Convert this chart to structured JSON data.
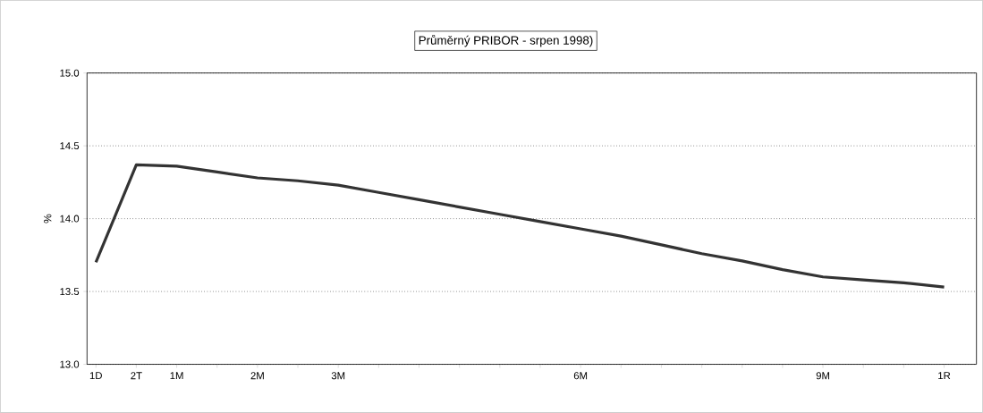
{
  "chart_data": {
    "type": "line",
    "title": "Průměrný PRIBOR - srpen 1998)",
    "ylabel": "%",
    "categories": [
      "1D",
      "2T",
      "1M",
      null,
      "2M",
      null,
      "3M",
      null,
      null,
      null,
      null,
      null,
      "6M",
      null,
      null,
      null,
      null,
      null,
      "9M",
      null,
      null,
      "1R"
    ],
    "series": [
      {
        "color": "#333333",
        "values": [
          13.7,
          14.37,
          14.36,
          14.32,
          14.28,
          14.26,
          14.23,
          14.18,
          14.13,
          14.08,
          14.03,
          13.98,
          13.93,
          13.88,
          13.82,
          13.76,
          13.71,
          13.65,
          13.6,
          13.58,
          13.56,
          13.53
        ]
      }
    ],
    "ylim": [
      13.0,
      15.0
    ],
    "yticks": [
      {
        "value": 13.0,
        "label": "13.0"
      },
      {
        "value": 13.5,
        "label": "13.5"
      },
      {
        "value": 14.0,
        "label": "14.0"
      },
      {
        "value": 14.5,
        "label": "14.5"
      },
      {
        "value": 15.0,
        "label": "15.0"
      }
    ],
    "grid": "y",
    "marker": "none",
    "line_style": "solid"
  }
}
